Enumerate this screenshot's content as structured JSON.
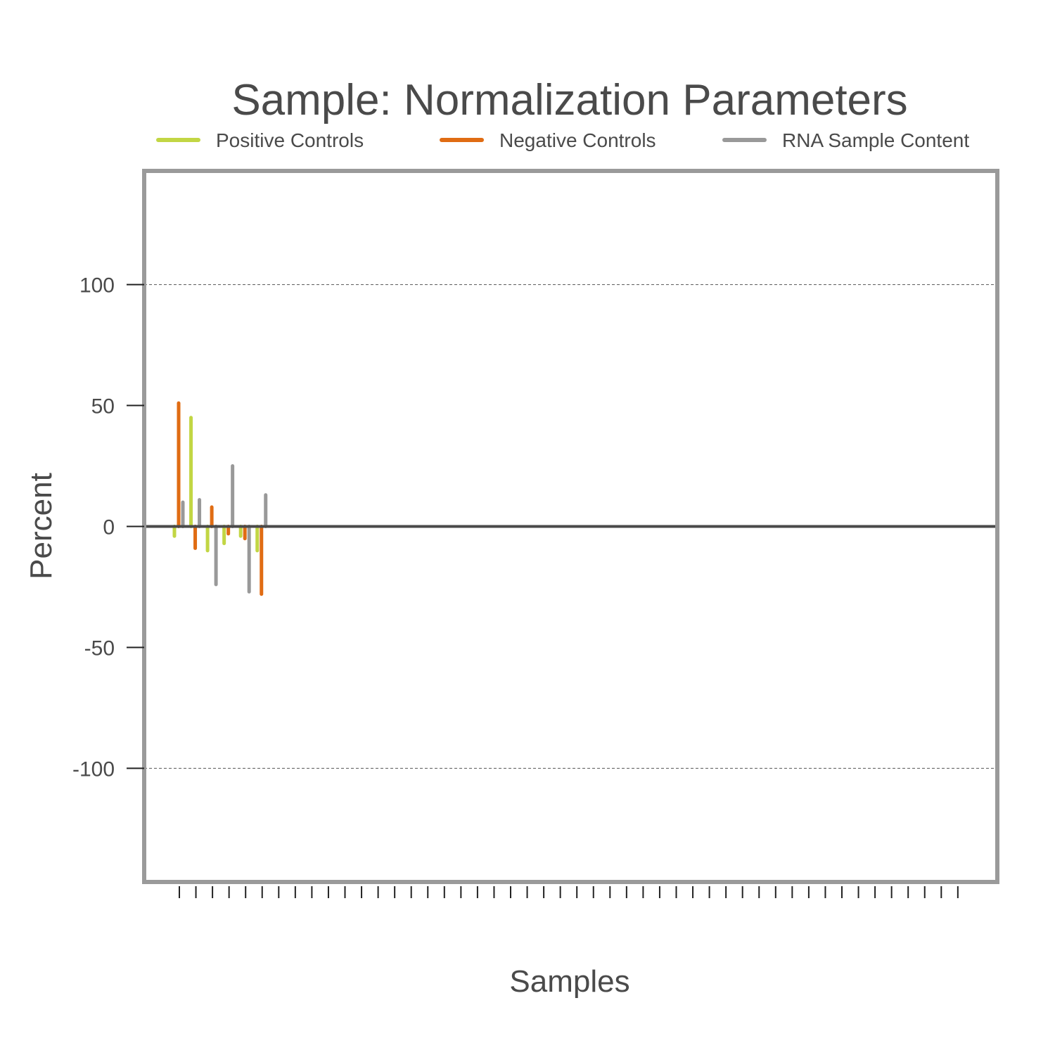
{
  "chart_data": {
    "type": "bar",
    "title": "Sample: Normalization Parameters",
    "xlabel": "Samples",
    "ylabel": "Percent",
    "ylim": [
      -147,
      147
    ],
    "yticks": [
      100,
      50,
      0,
      -50,
      -100
    ],
    "grid": "dashed horizontal lines at 100 and -100",
    "legend_position": "top",
    "sample_count": 48,
    "series": [
      {
        "name": "Positive Controls",
        "color": "#c2d644",
        "values": [
          -4,
          45,
          -10,
          -7,
          -4,
          -10
        ]
      },
      {
        "name": "Negative Controls",
        "color": "#e06c13",
        "values": [
          51,
          -9,
          8,
          -3,
          -5,
          -28
        ]
      },
      {
        "name": "RNA Sample Content",
        "color": "#999999",
        "values": [
          10,
          11,
          -24,
          25,
          -27,
          13
        ]
      }
    ]
  }
}
